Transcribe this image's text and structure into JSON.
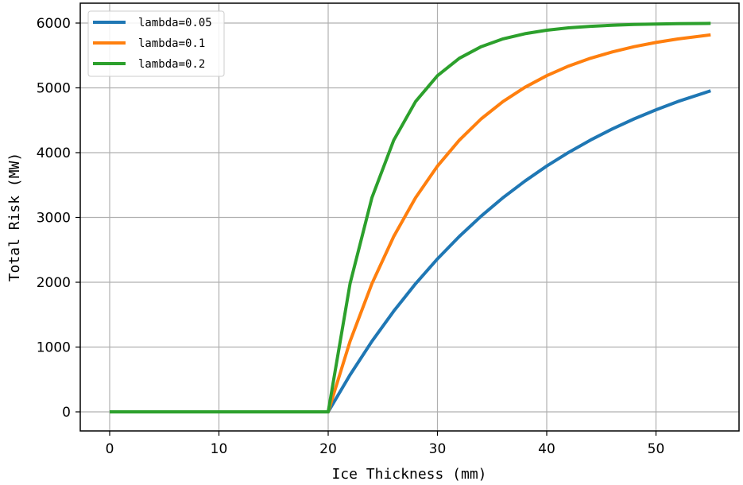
{
  "chart_data": {
    "type": "line",
    "title": "",
    "xlabel": "Ice Thickness (mm)",
    "ylabel": "Total Risk (MW)",
    "xlim": [
      -2.75,
      57.75
    ],
    "ylim": [
      -300,
      6300
    ],
    "xticks": [
      0,
      10,
      20,
      30,
      40,
      50
    ],
    "yticks": [
      0,
      1000,
      2000,
      3000,
      4000,
      5000,
      6000
    ],
    "grid": true,
    "legend_position": "upper left",
    "x": [
      0,
      20,
      22,
      24,
      26,
      28,
      30,
      32,
      34,
      36,
      38,
      40,
      42,
      44,
      46,
      48,
      50,
      52,
      55
    ],
    "series": [
      {
        "name": "lambda=0.05",
        "color": "#1f77b4",
        "values": [
          0,
          0,
          571,
          1088,
          1555,
          1978,
          2361,
          2707,
          3021,
          3305,
          3561,
          3794,
          4004,
          4194,
          4366,
          4522,
          4661,
          4789,
          4955
        ]
      },
      {
        "name": "lambda=0.1",
        "color": "#ff7f0e",
        "values": [
          0,
          0,
          1088,
          1978,
          2707,
          3305,
          3793,
          4193,
          4521,
          4789,
          5009,
          5188,
          5336,
          5456,
          5555,
          5635,
          5701,
          5755,
          5818
        ]
      },
      {
        "name": "lambda=0.2",
        "color": "#2ca02c",
        "values": [
          0,
          0,
          1978,
          3304,
          4193,
          4789,
          5188,
          5456,
          5635,
          5756,
          5836,
          5890,
          5926,
          5950,
          5967,
          5978,
          5985,
          5990,
          5995
        ]
      }
    ]
  }
}
